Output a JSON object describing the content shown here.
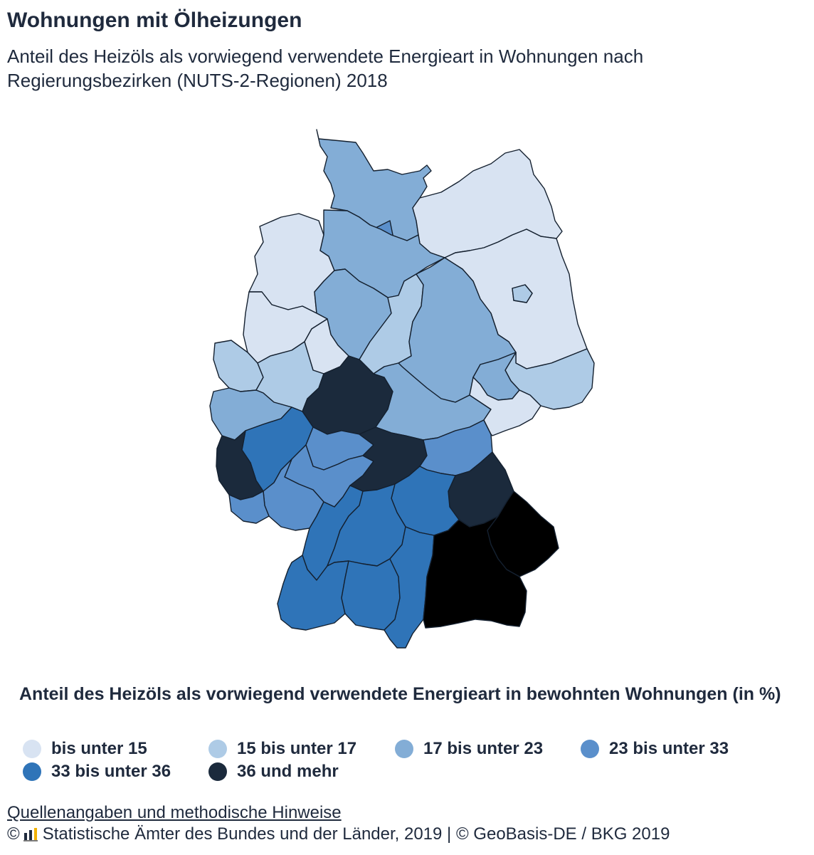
{
  "title": "Wohnungen mit Ölheizungen",
  "subtitle": "Anteil des Heizöls als vorwiegend verwendete Energieart in Wohnungen nach Regierungsbezirken (NUTS-2-Regionen) 2018",
  "legend": {
    "title": "Anteil des Heizöls als vorwiegend verwendete Energieart in bewohnten Wohnungen (in %)",
    "items": [
      {
        "label": "bis unter 15",
        "color": "#d8e3f2"
      },
      {
        "label": "15 bis unter 17",
        "color": "#aecbe6"
      },
      {
        "label": "17 bis unter 23",
        "color": "#83add6"
      },
      {
        "label": "23 bis unter 33",
        "color": "#5a8fcb"
      },
      {
        "label": "33 bis unter 36",
        "color": "#2f74b8"
      },
      {
        "label": "36 und mehr",
        "color": "#1b2a3c"
      }
    ]
  },
  "map": {
    "regions": [
      {
        "class": 2
      },
      {
        "class": 3
      },
      {
        "class": 0
      },
      {
        "class": 0
      },
      {
        "class": 2
      },
      {
        "class": 2
      },
      {
        "class": 1
      },
      {
        "class": 0
      },
      {
        "class": 1
      },
      {
        "class": 0
      },
      {
        "class": 0
      },
      {
        "class": 1
      },
      {
        "class": 1
      },
      {
        "class": 2
      },
      {
        "class": 5
      },
      {
        "class": 2
      },
      {
        "class": 2
      },
      {
        "class": 4
      },
      {
        "class": 5
      },
      {
        "class": 3
      },
      {
        "class": 3
      },
      {
        "class": 3
      },
      {
        "class": 3
      },
      {
        "class": 5
      },
      {
        "class": 4
      },
      {
        "class": 3
      },
      {
        "class": 5
      },
      {
        "class": 4
      },
      {
        "class": 4
      },
      {
        "class": 4
      },
      {
        "class": 4
      },
      {
        "class": 4
      },
      {
        "class": 1
      },
      {
        "class": 2
      },
      {
        "class": 0
      }
    ]
  },
  "footer": {
    "source_link": "Quellenangaben und methodische Hinweise",
    "copyright_symbol": "©",
    "credits": "Statistische Ämter des Bundes und der Länder, 2019 | © GeoBasis-DE / BKG 2019"
  }
}
